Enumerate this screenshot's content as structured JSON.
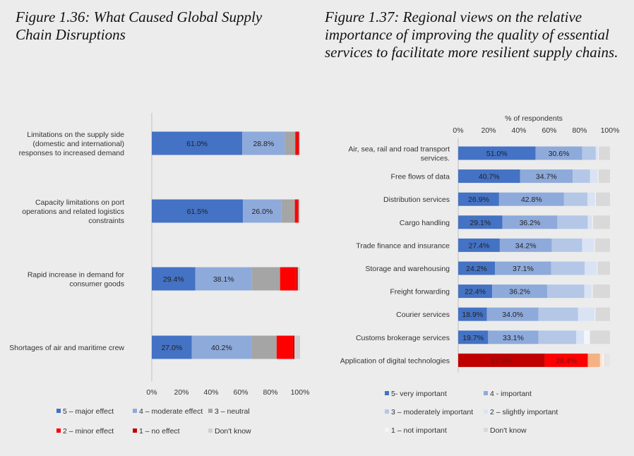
{
  "left_title": "Figure 1.36: What Caused Global Supply Chain Disruptions",
  "right_title": "Figure 1.37: Regional views on the relative importance of improving the quality of essential services to facilitate more resilient supply chains.",
  "chart_data": [
    {
      "type": "bar",
      "orientation": "horizontal",
      "stacked": true,
      "title": "Figure 1.36: What Caused Global Supply Chain Disruptions",
      "categories": [
        [
          "Limitations on the supply side",
          "(domestic and international)",
          "responses to increased demand"
        ],
        [
          "Capacity limitations on port",
          "operations and related logistics",
          "constraints"
        ],
        [
          "Rapid increase in demand for",
          "consumer goods"
        ],
        [
          "Shortages of air and maritime crew"
        ]
      ],
      "series": [
        {
          "name": "5 – major effect",
          "color": "#4472c4",
          "values": [
            61.0,
            61.5,
            29.4,
            27.0
          ],
          "labels": [
            "61.0%",
            "61.5%",
            "29.4%",
            "27.0%"
          ]
        },
        {
          "name": "4 – moderate effect",
          "color": "#8eaadb",
          "values": [
            28.8,
            26.0,
            38.1,
            40.2
          ],
          "labels": [
            "28.8%",
            "26.0%",
            "38.1%",
            "40.2%"
          ]
        },
        {
          "name": "3 – neutral",
          "color": "#a5a5a5",
          "values": [
            7.0,
            9.0,
            19.0,
            17.0
          ],
          "labels": [
            "",
            "",
            "",
            ""
          ]
        },
        {
          "name": "2 – minor effect",
          "color": "#ff0000",
          "values": [
            2.0,
            2.0,
            11.0,
            11.0
          ],
          "labels": [
            "",
            "",
            "",
            ""
          ]
        },
        {
          "name": "1 – no effect",
          "color": "#c00000",
          "values": [
            0.5,
            0.5,
            1.0,
            1.0
          ],
          "labels": [
            "",
            "",
            "",
            ""
          ]
        },
        {
          "name": "Don't know",
          "color": "#cfcfcf",
          "values": [
            0.7,
            1.0,
            1.5,
            3.8
          ],
          "labels": [
            "",
            "",
            "",
            ""
          ]
        }
      ],
      "xticks": [
        "0%",
        "20%",
        "40%",
        "60%",
        "80%",
        "100%"
      ],
      "xlim": [
        0,
        100
      ],
      "legend_position": "bottom"
    },
    {
      "type": "bar",
      "orientation": "horizontal",
      "stacked": true,
      "title": "Figure 1.37: Regional views on the relative importance of improving the quality of essential services to facilitate more resilient supply chains.",
      "xlabel": "% of respondents",
      "categories": [
        [
          "Air, sea, rail and road transport",
          "services."
        ],
        [
          "Free flows of data"
        ],
        [
          "Distribution services"
        ],
        [
          "Cargo handling"
        ],
        [
          "Trade finance and insurance"
        ],
        [
          "Storage and warehousing"
        ],
        [
          "Freight forwarding"
        ],
        [
          "Courier services"
        ],
        [
          "Customs brokerage services"
        ],
        [
          "Application of digital technologies"
        ]
      ],
      "series": [
        {
          "name": "5- very important",
          "color": "#4472c4",
          "values": [
            51.0,
            40.7,
            26.9,
            29.1,
            27.4,
            24.2,
            22.4,
            18.9,
            19.7,
            57.0
          ],
          "labels": [
            "51.0%",
            "40.7%",
            "26.9%",
            "29.1%",
            "27.4%",
            "24.2%",
            "22.4%",
            "18.9%",
            "19.7%",
            "57.0%"
          ]
        },
        {
          "name": "4 - important",
          "color": "#8eaadb",
          "values": [
            30.6,
            34.7,
            42.8,
            36.2,
            34.2,
            37.1,
            36.2,
            34.0,
            33.1,
            28.4
          ],
          "labels": [
            "30.6%",
            "34.7%",
            "42.8%",
            "36.2%",
            "34.2%",
            "37.1%",
            "36.2%",
            "34.0%",
            "33.1%",
            "28.4%"
          ]
        },
        {
          "name": "3 – moderately important",
          "color": "#b4c7e7",
          "values": [
            9.0,
            11.5,
            15.5,
            20.0,
            20.0,
            22.0,
            24.5,
            26.0,
            25.0,
            8.0
          ],
          "labels": [
            "",
            "",
            "",
            "",
            "",
            "",
            "",
            "",
            "",
            ""
          ]
        },
        {
          "name": "2 – slightly important",
          "color": "#dae3f3",
          "values": [
            1.5,
            5.0,
            5.0,
            3.0,
            8.0,
            8.0,
            5.0,
            11.0,
            5.0,
            1.5
          ],
          "labels": [
            "",
            "",
            "",
            "",
            "",
            "",
            "",
            "",
            "",
            ""
          ]
        },
        {
          "name": "1 – not important",
          "color": "#f2f5fb",
          "values": [
            0.5,
            0.5,
            0.5,
            0.5,
            0.5,
            0.5,
            0.5,
            0.5,
            4.0,
            1.0
          ],
          "labels": [
            "",
            "",
            "",
            "",
            "",
            "",
            "",
            "",
            "",
            ""
          ]
        },
        {
          "name": "Don't know",
          "color": "#d9d9d9",
          "values": [
            7.4,
            7.6,
            9.3,
            11.2,
            9.9,
            8.2,
            11.4,
            9.6,
            13.2,
            4.1
          ],
          "labels": [
            "",
            "",
            "",
            "",
            "",
            "",
            "",
            "",
            "",
            ""
          ]
        }
      ],
      "last_row_colors": [
        "#c00000",
        "#ff0000",
        "#f4b183",
        "#fbe5d6",
        "#fdf2ec",
        "#e6e6e6"
      ],
      "xticks": [
        "0%",
        "20%",
        "40%",
        "60%",
        "80%",
        "100%"
      ],
      "xlim": [
        0,
        100
      ],
      "legend_position": "bottom"
    }
  ]
}
